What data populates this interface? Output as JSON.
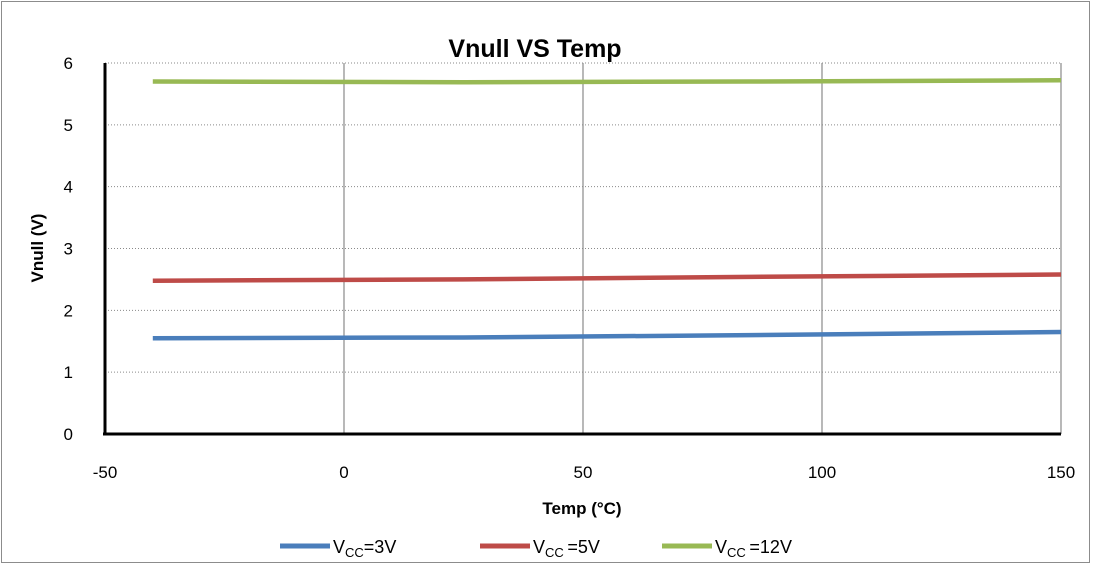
{
  "chart_data": {
    "type": "line",
    "title": "Vnull  VS  Temp",
    "xlabel": "Temp (°C)",
    "ylabel": "Vnull (V)",
    "xlim": [
      -50,
      150
    ],
    "ylim": [
      0,
      6
    ],
    "xticks": [
      -50,
      0,
      50,
      100,
      150
    ],
    "yticks": [
      0,
      1,
      2,
      3,
      4,
      5,
      6
    ],
    "grid": true,
    "legend_position": "bottom",
    "series": [
      {
        "name": "VCC=3V",
        "legend_main": "V",
        "legend_sub": "CC",
        "legend_rest": "=3V",
        "color": "#4a7ebb",
        "x": [
          -40,
          25,
          85,
          150
        ],
        "y": [
          1.55,
          1.56,
          1.6,
          1.65
        ]
      },
      {
        "name": "VCC =5V",
        "legend_main": "V",
        "legend_sub": "CC ",
        "legend_rest": "=5V",
        "color": "#be4b48",
        "x": [
          -40,
          25,
          85,
          150
        ],
        "y": [
          2.48,
          2.5,
          2.54,
          2.58
        ]
      },
      {
        "name": "VCC =12V",
        "legend_main": "V",
        "legend_sub": "CC ",
        "legend_rest": "=12V",
        "color": "#98b954",
        "x": [
          -40,
          25,
          85,
          150
        ],
        "y": [
          5.7,
          5.69,
          5.7,
          5.72
        ]
      }
    ]
  }
}
